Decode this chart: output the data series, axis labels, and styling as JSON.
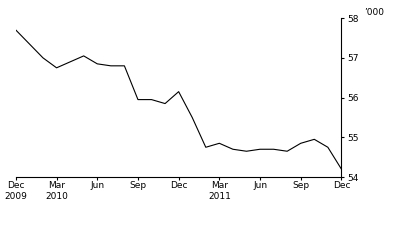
{
  "title": "",
  "ylabel": "’000",
  "ylim": [
    54,
    58
  ],
  "yticks": [
    54,
    55,
    56,
    57,
    58
  ],
  "line_color": "#000000",
  "background_color": "#ffffff",
  "x_labels": [
    "Dec\n2009",
    "Mar\n2010",
    "Jun",
    "Sep",
    "Dec",
    "Mar\n2011",
    "Jun",
    "Sep",
    "Dec"
  ],
  "x_positions": [
    0,
    3,
    6,
    9,
    12,
    15,
    18,
    21,
    24
  ],
  "data_points": [
    [
      0,
      57.7
    ],
    [
      1,
      57.35
    ],
    [
      2,
      57.0
    ],
    [
      3,
      56.75
    ],
    [
      4,
      56.9
    ],
    [
      5,
      57.05
    ],
    [
      6,
      56.85
    ],
    [
      7,
      56.8
    ],
    [
      8,
      56.8
    ],
    [
      9,
      55.95
    ],
    [
      10,
      55.95
    ],
    [
      11,
      55.85
    ],
    [
      12,
      56.15
    ],
    [
      13,
      55.5
    ],
    [
      14,
      54.75
    ],
    [
      15,
      54.85
    ],
    [
      16,
      54.7
    ],
    [
      17,
      54.65
    ],
    [
      18,
      54.7
    ],
    [
      19,
      54.7
    ],
    [
      20,
      54.65
    ],
    [
      21,
      54.85
    ],
    [
      22,
      54.95
    ],
    [
      23,
      54.75
    ],
    [
      24,
      54.2
    ]
  ]
}
